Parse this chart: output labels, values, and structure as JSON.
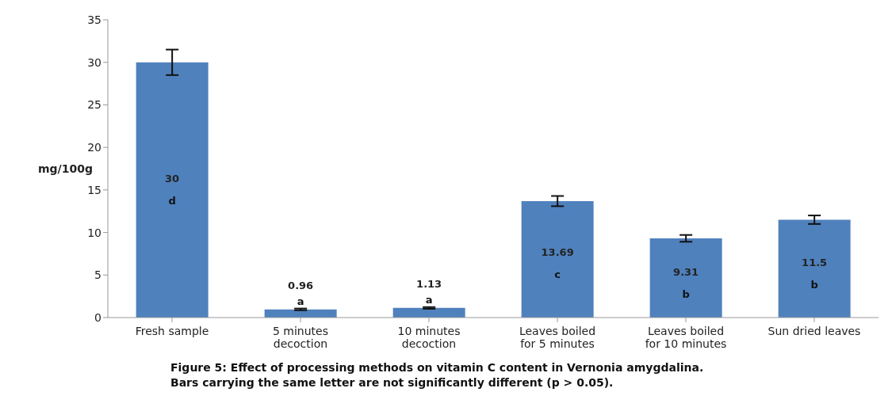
{
  "chart_data": {
    "type": "bar",
    "ylabel": "mg/100g",
    "categories": [
      "Fresh sample",
      "5 minutes decoction",
      "10 minutes decoction",
      "Leaves boiled for 5 minutes",
      "Leaves boiled for 10 minutes",
      "Sun dried leaves"
    ],
    "values": [
      30,
      0.96,
      1.13,
      13.69,
      9.31,
      11.5
    ],
    "color": "#4f81bd",
    "errors": [
      1.5,
      0.1,
      0.1,
      0.6,
      0.4,
      0.5
    ],
    "data_labels": true,
    "ylim": [
      0,
      35
    ],
    "yticks": [
      0,
      5,
      10,
      15,
      20,
      25,
      30,
      35
    ],
    "grid": false,
    "legend": false,
    "annotations": [
      "d",
      "a",
      "a",
      "c",
      "b",
      "b",
      "Figure 5: Effect of processing methods on vitamin C content in Vernonia amygdalina.",
      "Bars carrying the same letter are not significantly different (p > 0.05)."
    ]
  }
}
